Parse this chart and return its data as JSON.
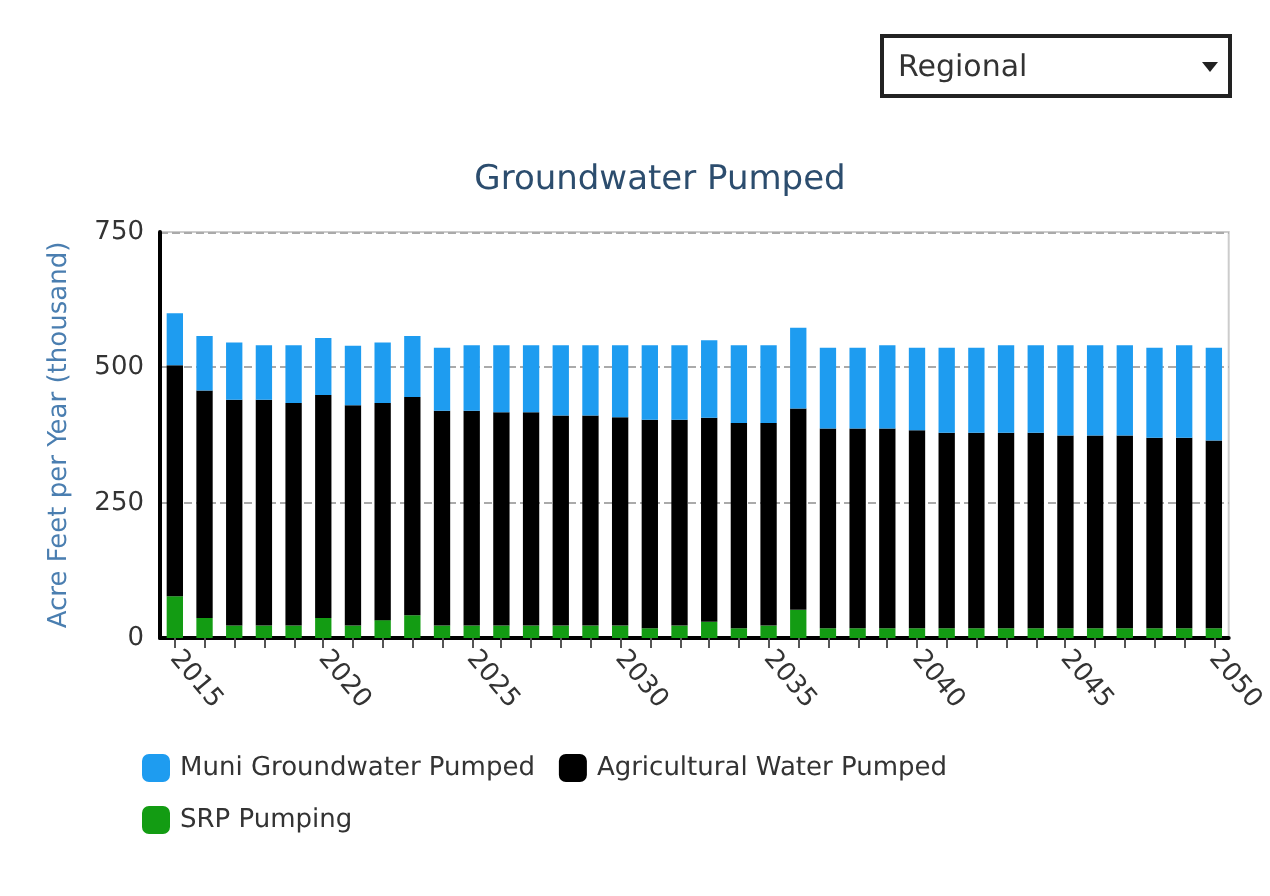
{
  "chart_data": {
    "type": "bar",
    "title": "Groundwater Pumped",
    "ylabel": "Acre Feet per Year (thousand)",
    "annotations": [
      "Regional"
    ],
    "categories": [
      "2015",
      null,
      null,
      null,
      null,
      "2020",
      null,
      null,
      null,
      null,
      "2025",
      null,
      null,
      null,
      null,
      "2030",
      null,
      null,
      null,
      null,
      "2035",
      null,
      null,
      null,
      null,
      "2040",
      null,
      null,
      null,
      null,
      "2045",
      null,
      null,
      null,
      null,
      "2050"
    ],
    "stacked": true,
    "ylim": [
      0,
      750
    ],
    "yticks": [
      0,
      250,
      500,
      750
    ],
    "grid": "y",
    "legend": "bottom",
    "series": [
      {
        "name": "SRP Pumping",
        "color": "#139c13",
        "values": [
          77,
          37,
          23,
          23,
          23,
          37,
          23,
          33,
          42,
          23,
          23,
          23,
          23,
          23,
          23,
          23,
          18,
          23,
          30,
          18,
          23,
          52,
          18,
          18,
          18,
          18,
          18,
          18,
          18,
          18,
          18,
          18,
          18,
          18,
          18,
          18
        ]
      },
      {
        "name": "Agricultural Water Pumped",
        "color": "#000000",
        "values": [
          427,
          420,
          417,
          417,
          411,
          412,
          407,
          401,
          403,
          397,
          397,
          394,
          394,
          388,
          388,
          385,
          385,
          380,
          377,
          379,
          374,
          372,
          369,
          369,
          369,
          366,
          361,
          361,
          361,
          361,
          356,
          356,
          356,
          352,
          352,
          347
        ]
      },
      {
        "name": "Muni Groundwater Pumped",
        "color": "#1e9cf0",
        "values": [
          96,
          101,
          106,
          101,
          107,
          105,
          110,
          112,
          113,
          116,
          121,
          124,
          124,
          130,
          130,
          133,
          138,
          138,
          143,
          144,
          144,
          149,
          149,
          149,
          154,
          152,
          157,
          157,
          162,
          162,
          167,
          167,
          167,
          166,
          171,
          171
        ]
      }
    ]
  }
}
